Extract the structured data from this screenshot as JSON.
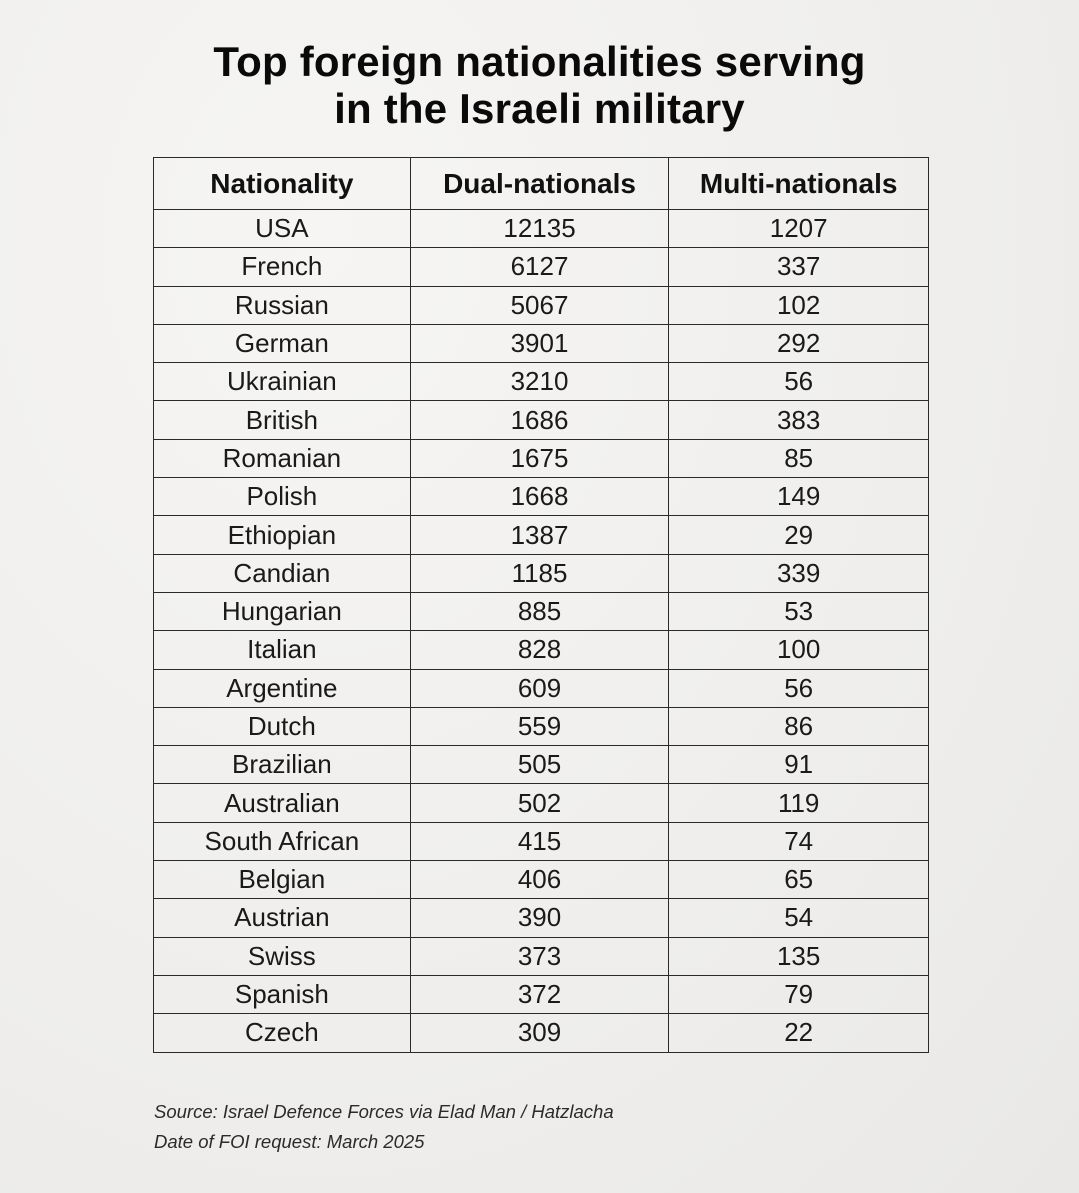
{
  "title": {
    "line1": "Top foreign nationalities serving",
    "line2": "in the Israeli military"
  },
  "table": {
    "headers": [
      "Nationality",
      "Dual-nationals",
      "Multi-nationals"
    ],
    "rows": [
      [
        "USA",
        "12135",
        "1207"
      ],
      [
        "French",
        "6127",
        "337"
      ],
      [
        "Russian",
        "5067",
        "102"
      ],
      [
        "German",
        "3901",
        "292"
      ],
      [
        "Ukrainian",
        "3210",
        "56"
      ],
      [
        "British",
        "1686",
        "383"
      ],
      [
        "Romanian",
        "1675",
        "85"
      ],
      [
        "Polish",
        "1668",
        "149"
      ],
      [
        "Ethiopian",
        "1387",
        "29"
      ],
      [
        "Candian",
        "1185",
        "339"
      ],
      [
        "Hungarian",
        "885",
        "53"
      ],
      [
        "Italian",
        "828",
        "100"
      ],
      [
        "Argentine",
        "609",
        "56"
      ],
      [
        "Dutch",
        "559",
        "86"
      ],
      [
        "Brazilian",
        "505",
        "91"
      ],
      [
        "Australian",
        "502",
        "119"
      ],
      [
        "South African",
        "415",
        "74"
      ],
      [
        "Belgian",
        "406",
        "65"
      ],
      [
        "Austrian",
        "390",
        "54"
      ],
      [
        "Swiss",
        "373",
        "135"
      ],
      [
        "Spanish",
        "372",
        "79"
      ],
      [
        "Czech",
        "309",
        "22"
      ]
    ]
  },
  "footer": {
    "source": "Source: Israel Defence Forces via Elad Man / Hatzlacha",
    "date": "Date of FOI request: March 2025"
  }
}
